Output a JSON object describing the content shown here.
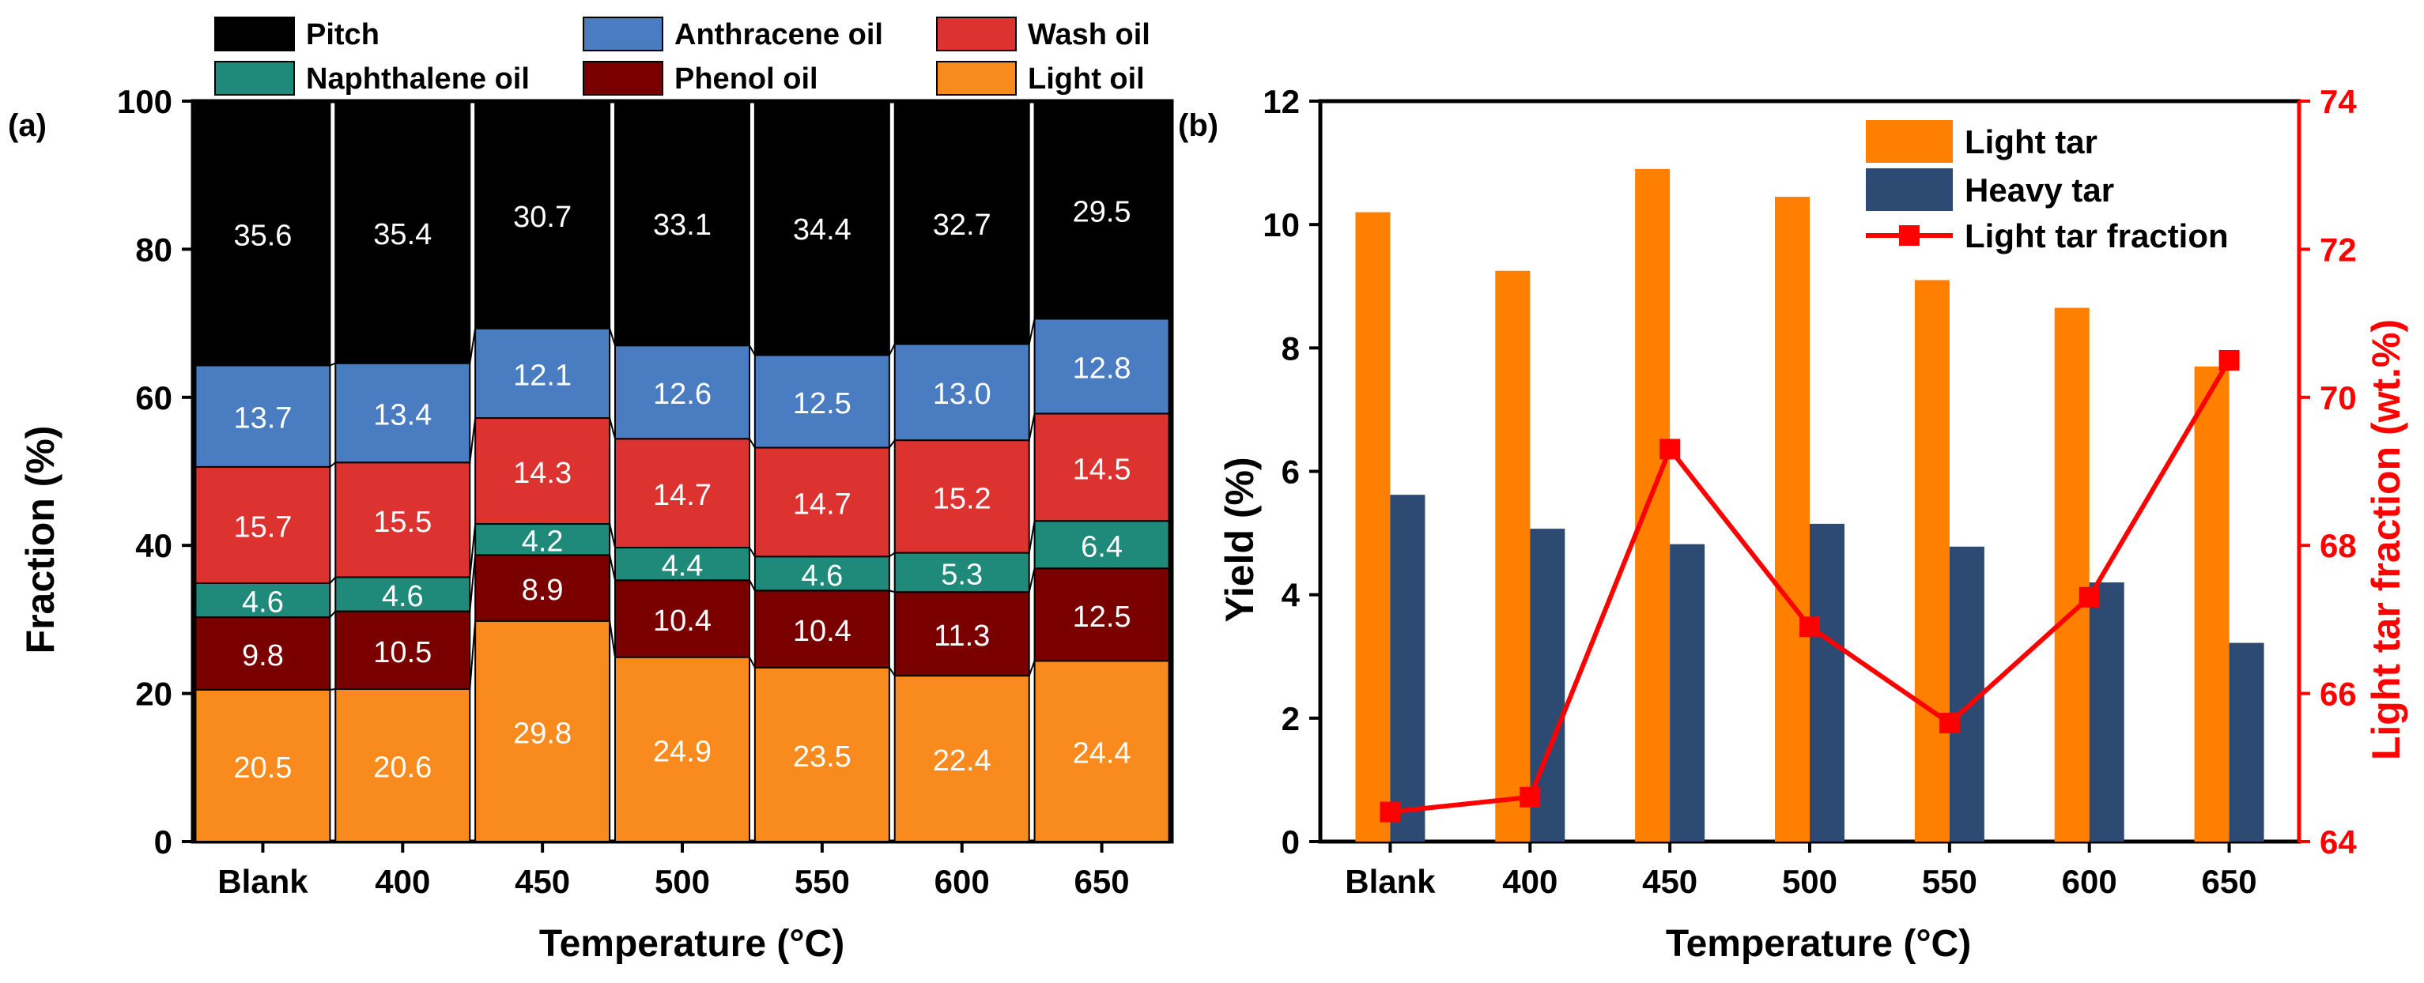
{
  "colors": {
    "pitch": "#000000",
    "anthracene_oil": "#4a7cc2",
    "wash_oil": "#dc3230",
    "naphthalene_oil": "#1f8a79",
    "phenol_oil": "#7a0000",
    "light_oil": "#f88a1e",
    "light_tar": "#ff8000",
    "heavy_tar": "#2d4a72",
    "fraction_line": "#ff0000",
    "axis": "#000000"
  },
  "chart_data": [
    {
      "type": "bar",
      "stacked": true,
      "panel_label": "(a)",
      "xlabel": "Temperature (°C)",
      "ylabel": "Fraction (%)",
      "ylim": [
        0,
        100
      ],
      "yticks": [
        "0",
        "20",
        "40",
        "60",
        "80",
        "100"
      ],
      "categories": [
        "Blank",
        "400",
        "450",
        "500",
        "550",
        "600",
        "650"
      ],
      "series": [
        {
          "key": "light_oil",
          "name": "Light oil",
          "values": [
            20.5,
            20.6,
            29.8,
            24.9,
            23.5,
            22.4,
            24.4
          ],
          "labels": [
            "20.5",
            "20.6",
            "29.8",
            "24.9",
            "23.5",
            "22.4",
            "24.4"
          ]
        },
        {
          "key": "phenol_oil",
          "name": "Phenol oil",
          "values": [
            9.8,
            10.5,
            8.9,
            10.4,
            10.4,
            11.3,
            12.5
          ],
          "labels": [
            "9.8",
            "10.5",
            "8.9",
            "10.4",
            "10.4",
            "11.3",
            "12.5"
          ]
        },
        {
          "key": "naphthalene_oil",
          "name": "Naphthalene oil",
          "values": [
            4.6,
            4.6,
            4.2,
            4.4,
            4.6,
            5.3,
            6.4
          ],
          "labels": [
            "4.6",
            "4.6",
            "4.2",
            "4.4",
            "4.6",
            "5.3",
            "6.4"
          ]
        },
        {
          "key": "wash_oil",
          "name": "Wash oil",
          "values": [
            15.7,
            15.5,
            14.3,
            14.7,
            14.7,
            15.2,
            14.5
          ],
          "labels": [
            "15.7",
            "15.5",
            "14.3",
            "14.7",
            "14.7",
            "15.2",
            "14.5"
          ]
        },
        {
          "key": "anthracene_oil",
          "name": "Anthracene oil",
          "values": [
            13.7,
            13.4,
            12.1,
            12.6,
            12.5,
            13.0,
            12.8
          ],
          "labels": [
            "13.7",
            "13.4",
            "12.1",
            "12.6",
            "12.5",
            "13.0",
            "12.8"
          ]
        },
        {
          "key": "pitch",
          "name": "Pitch",
          "values": [
            35.6,
            35.4,
            30.7,
            33.1,
            34.4,
            32.7,
            29.5
          ],
          "labels": [
            "35.6",
            "35.4",
            "30.7",
            "33.1",
            "34.4",
            "32.7",
            "29.5"
          ]
        }
      ],
      "legend": [
        {
          "key": "pitch",
          "name": "Pitch"
        },
        {
          "key": "anthracene_oil",
          "name": "Anthracene oil"
        },
        {
          "key": "wash_oil",
          "name": "Wash oil"
        },
        {
          "key": "naphthalene_oil",
          "name": "Naphthalene oil"
        },
        {
          "key": "phenol_oil",
          "name": "Phenol oil"
        },
        {
          "key": "light_oil",
          "name": "Light oil"
        }
      ],
      "legend_position": "top"
    },
    {
      "type": "bar",
      "panel_label": "(b)",
      "xlabel": "Temperature (°C)",
      "ylabel": "Yield (%)",
      "ylim": [
        0,
        12
      ],
      "yticks": [
        "0",
        "2",
        "4",
        "6",
        "8",
        "10",
        "12"
      ],
      "ylabel_right": "Light tar fraction (wt.%)",
      "ylim_right": [
        64,
        74
      ],
      "yticks_right": [
        "64",
        "66",
        "68",
        "70",
        "72",
        "74"
      ],
      "categories": [
        "Blank",
        "400",
        "450",
        "500",
        "550",
        "600",
        "650"
      ],
      "series": [
        {
          "key": "light_tar",
          "name": "Light tar",
          "type": "bar",
          "axis": "left",
          "values": [
            10.2,
            9.25,
            10.9,
            10.45,
            9.1,
            8.65,
            7.7
          ]
        },
        {
          "key": "heavy_tar",
          "name": "Heavy tar",
          "type": "bar",
          "axis": "left",
          "values": [
            5.62,
            5.07,
            4.82,
            5.15,
            4.78,
            4.2,
            3.22
          ]
        },
        {
          "key": "fraction_line",
          "name": "Light tar fraction",
          "type": "line",
          "marker": "square",
          "axis": "right",
          "values": [
            64.4,
            64.6,
            69.3,
            66.9,
            65.6,
            67.3,
            70.5
          ]
        }
      ],
      "legend_position": "top-right"
    }
  ]
}
